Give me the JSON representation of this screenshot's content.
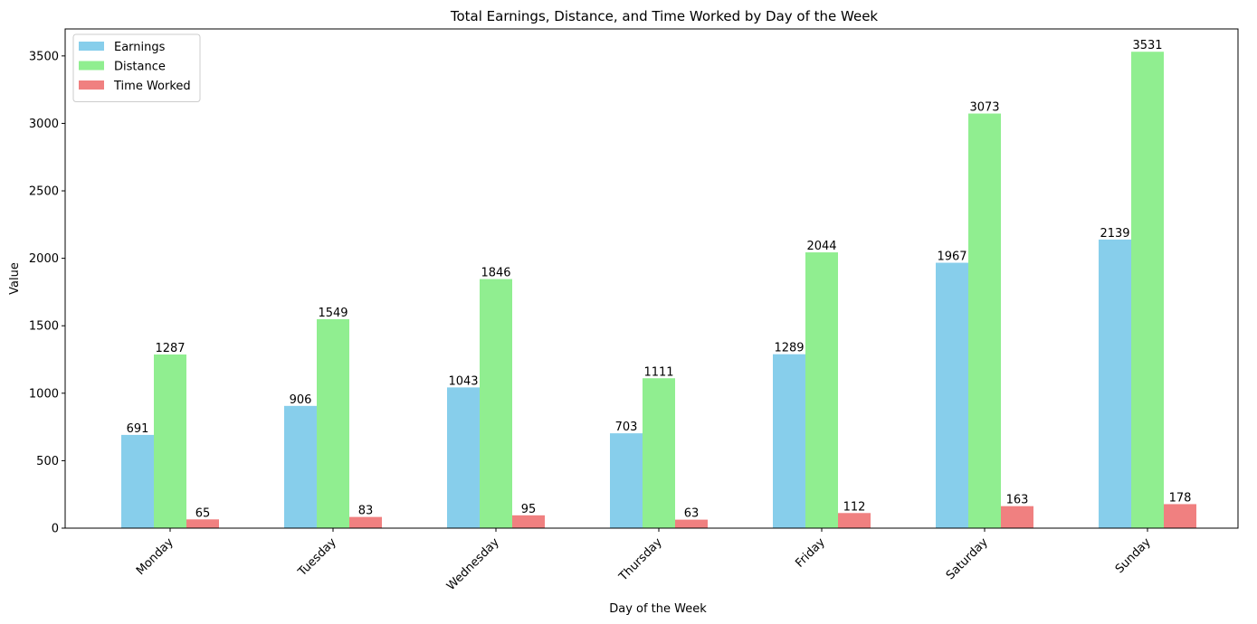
{
  "chart_data": {
    "type": "bar",
    "title": "Total Earnings, Distance, and Time Worked by Day of the Week",
    "xlabel": "Day of the Week",
    "ylabel": "Value",
    "categories": [
      "Monday",
      "Tuesday",
      "Wednesday",
      "Thursday",
      "Friday",
      "Saturday",
      "Sunday"
    ],
    "series": [
      {
        "name": "Earnings",
        "color": "#87ceeb",
        "values": [
          691,
          906,
          1043,
          703,
          1289,
          1967,
          2139
        ]
      },
      {
        "name": "Distance",
        "color": "#90ee90",
        "values": [
          1287,
          1549,
          1846,
          1111,
          2044,
          3073,
          3531
        ]
      },
      {
        "name": "Time Worked",
        "color": "#f08080",
        "values": [
          65,
          83,
          95,
          63,
          112,
          163,
          178
        ]
      }
    ],
    "ylim": [
      0,
      3700
    ],
    "yticks": [
      0,
      500,
      1000,
      1500,
      2000,
      2500,
      3000,
      3500
    ],
    "xtick_rotation": 45,
    "grid": false,
    "legend_position": "upper left"
  }
}
